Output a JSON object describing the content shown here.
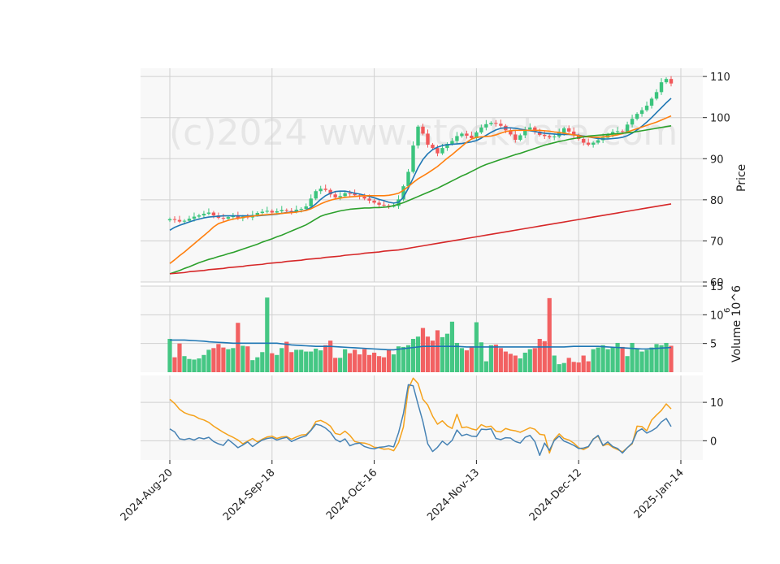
{
  "watermark": "(c)2024 www.stockdata.com",
  "chart_data": {
    "type": "candlestick",
    "x_tick_labels": [
      "2024-Aug-20",
      "2024-Sep-18",
      "2024-Oct-16",
      "2024-Nov-13",
      "2024-Dec-12",
      "2025-Jan-14"
    ],
    "price_panel": {
      "ylabel": "Price",
      "ylim": [
        60,
        112
      ],
      "yticks": [
        60,
        70,
        80,
        90,
        100,
        110
      ],
      "close": [
        75.3,
        75.1,
        74.7,
        74.9,
        75.4,
        75.9,
        76.2,
        76.6,
        76.9,
        76.2,
        75.6,
        75.4,
        75.8,
        76.1,
        75.5,
        75.9,
        75.7,
        76.3,
        76.8,
        77.1,
        77.3,
        76.9,
        77.2,
        77.5,
        77.3,
        77.1,
        77.6,
        77.8,
        78.4,
        80.3,
        82.1,
        82.7,
        82.4,
        81.3,
        80.6,
        80.9,
        81.6,
        81.5,
        81.1,
        80.8,
        80.3,
        79.8,
        79.3,
        78.8,
        78.6,
        78.5,
        78.5,
        80.1,
        83.3,
        86.8,
        93.2,
        97.8,
        96.1,
        93.4,
        92.6,
        91.3,
        92.6,
        93.6,
        94.3,
        95.5,
        96.1,
        95.6,
        95.0,
        96.4,
        97.6,
        98.4,
        98.7,
        98.5,
        98.0,
        96.9,
        95.9,
        94.6,
        95.7,
        97.1,
        97.6,
        96.6,
        95.8,
        95.5,
        95.2,
        95.4,
        96.3,
        97.4,
        96.6,
        95.7,
        94.8,
        93.9,
        93.4,
        93.9,
        94.5,
        95.1,
        95.9,
        96.5,
        96.7,
        96.6,
        98.3,
        99.7,
        100.9,
        101.8,
        102.9,
        104.6,
        106.2,
        108.6,
        109.4,
        108.3
      ],
      "moving_averages": [
        {
          "color": "#1f77b4",
          "values": [
            72.6,
            73.3,
            73.8,
            74.2,
            74.6,
            75.0,
            75.3,
            75.6,
            75.8,
            75.9,
            76.0,
            76.1,
            76.1,
            76.1,
            76.1,
            76.1,
            76.1,
            76.1,
            76.1,
            76.2,
            76.3,
            76.4,
            76.5,
            76.7,
            76.9,
            77.0,
            77.1,
            77.2,
            77.5,
            78.1,
            79.0,
            80.1,
            81.0,
            81.6,
            82.0,
            82.1,
            82.1,
            81.9,
            81.6,
            81.4,
            81.1,
            80.8,
            80.5,
            80.1,
            79.8,
            79.4,
            79.2,
            79.4,
            80.6,
            82.8,
            85.3,
            87.8,
            89.8,
            91.2,
            92.2,
            92.8,
            93.2,
            93.4,
            93.5,
            93.6,
            93.7,
            93.9,
            94.1,
            94.4,
            95.0,
            95.7,
            96.4,
            97.0,
            97.4,
            97.5,
            97.5,
            97.4,
            97.2,
            97.0,
            96.8,
            96.6,
            96.4,
            96.2,
            96.1,
            96.0,
            95.9,
            95.9,
            95.9,
            95.8,
            95.7,
            95.5,
            95.3,
            95.1,
            94.9,
            94.8,
            94.8,
            94.9,
            95.0,
            95.2,
            95.6,
            96.2,
            97.0,
            97.9,
            98.9,
            100.0,
            101.2,
            102.4,
            103.6,
            104.7
          ]
        },
        {
          "color": "#ff7f0e",
          "values": [
            64.5,
            65.4,
            66.4,
            67.3,
            68.3,
            69.3,
            70.3,
            71.3,
            72.3,
            73.4,
            74.2,
            74.6,
            75.0,
            75.3,
            75.5,
            75.7,
            75.9,
            76.0,
            76.2,
            76.3,
            76.4,
            76.5,
            76.6,
            76.7,
            76.8,
            76.9,
            77.0,
            77.2,
            77.4,
            77.8,
            78.4,
            79.0,
            79.5,
            79.9,
            80.2,
            80.4,
            80.6,
            80.7,
            80.8,
            80.9,
            81.0,
            81.0,
            81.0,
            81.0,
            81.0,
            81.1,
            81.3,
            81.6,
            82.3,
            83.2,
            84.2,
            85.1,
            85.8,
            86.5,
            87.3,
            88.1,
            89.1,
            90.1,
            91.0,
            92.0,
            93.0,
            94.0,
            94.8,
            95.2,
            95.3,
            95.4,
            95.5,
            95.8,
            96.2,
            96.6,
            96.8,
            96.9,
            96.9,
            96.9,
            96.9,
            96.9,
            96.9,
            96.8,
            96.7,
            96.5,
            96.4,
            96.2,
            96.0,
            95.8,
            95.6,
            95.4,
            95.3,
            95.2,
            95.2,
            95.3,
            95.4,
            95.6,
            95.8,
            96.1,
            96.5,
            96.9,
            97.3,
            97.7,
            98.1,
            98.5,
            98.9,
            99.4,
            99.9,
            100.4
          ]
        },
        {
          "color": "#2ca02c",
          "values": [
            62.0,
            62.4,
            62.8,
            63.3,
            63.7,
            64.2,
            64.7,
            65.1,
            65.5,
            65.8,
            66.2,
            66.5,
            66.9,
            67.2,
            67.6,
            68.0,
            68.4,
            68.8,
            69.2,
            69.7,
            70.1,
            70.5,
            71.0,
            71.4,
            71.9,
            72.4,
            72.9,
            73.4,
            73.9,
            74.6,
            75.3,
            76.0,
            76.4,
            76.7,
            77.0,
            77.3,
            77.5,
            77.7,
            77.8,
            77.9,
            78.0,
            78.0,
            78.1,
            78.1,
            78.2,
            78.3,
            78.6,
            78.9,
            79.3,
            79.8,
            80.3,
            80.8,
            81.3,
            81.8,
            82.3,
            82.8,
            83.4,
            84.0,
            84.6,
            85.2,
            85.8,
            86.3,
            86.9,
            87.5,
            88.1,
            88.6,
            89.0,
            89.4,
            89.8,
            90.2,
            90.6,
            91.0,
            91.3,
            91.7,
            92.1,
            92.5,
            92.9,
            93.3,
            93.6,
            93.9,
            94.2,
            94.4,
            94.7,
            94.9,
            95.1,
            95.3,
            95.5,
            95.6,
            95.7,
            95.8,
            95.9,
            96.0,
            96.1,
            96.2,
            96.3,
            96.4,
            96.6,
            96.8,
            97.0,
            97.2,
            97.4,
            97.6,
            97.8,
            98.0
          ]
        },
        {
          "color": "#d62728",
          "values": [
            62.0,
            62.1,
            62.2,
            62.3,
            62.5,
            62.6,
            62.7,
            62.8,
            63.0,
            63.1,
            63.2,
            63.3,
            63.5,
            63.6,
            63.7,
            63.8,
            64.0,
            64.1,
            64.2,
            64.3,
            64.5,
            64.6,
            64.7,
            64.8,
            65.0,
            65.1,
            65.2,
            65.3,
            65.5,
            65.6,
            65.7,
            65.8,
            66.0,
            66.1,
            66.2,
            66.3,
            66.5,
            66.6,
            66.7,
            66.8,
            67.0,
            67.1,
            67.2,
            67.3,
            67.5,
            67.6,
            67.7,
            67.8,
            68.0,
            68.2,
            68.4,
            68.6,
            68.8,
            69.0,
            69.2,
            69.4,
            69.6,
            69.8,
            70.0,
            70.2,
            70.4,
            70.6,
            70.8,
            71.0,
            71.2,
            71.4,
            71.6,
            71.8,
            72.0,
            72.2,
            72.4,
            72.6,
            72.8,
            73.0,
            73.2,
            73.4,
            73.6,
            73.8,
            74.0,
            74.2,
            74.4,
            74.6,
            74.8,
            75.0,
            75.2,
            75.4,
            75.6,
            75.8,
            76.0,
            76.2,
            76.4,
            76.6,
            76.8,
            77.0,
            77.2,
            77.4,
            77.6,
            77.8,
            78.0,
            78.2,
            78.4,
            78.6,
            78.8,
            79.0
          ]
        }
      ]
    },
    "volume_panel": {
      "ylabel": "Volume  10^6",
      "ylim": [
        0,
        15
      ],
      "yticks": [
        5,
        10,
        15
      ],
      "values": [
        5.8,
        2.6,
        5.0,
        2.8,
        2.3,
        2.2,
        2.4,
        3.0,
        3.9,
        4.2,
        4.9,
        4.3,
        4.0,
        4.2,
        8.6,
        4.6,
        4.5,
        2.1,
        2.6,
        3.5,
        13.0,
        3.3,
        3.0,
        4.2,
        5.3,
        3.5,
        3.9,
        3.9,
        3.6,
        3.6,
        4.1,
        3.8,
        4.7,
        5.5,
        2.5,
        2.5,
        4.0,
        3.3,
        3.9,
        3.1,
        4.0,
        3.0,
        3.4,
        2.8,
        2.6,
        4.0,
        3.1,
        4.5,
        4.4,
        4.7,
        5.8,
        6.2,
        7.7,
        6.2,
        5.5,
        7.3,
        6.1,
        6.7,
        8.8,
        5.1,
        4.2,
        3.8,
        4.5,
        8.7,
        5.2,
        1.9,
        4.7,
        4.8,
        4.2,
        3.6,
        3.2,
        2.9,
        2.4,
        3.4,
        4.0,
        4.2,
        5.8,
        5.4,
        12.9,
        2.9,
        1.4,
        1.6,
        2.5,
        1.8,
        1.7,
        2.9,
        1.9,
        4.0,
        4.3,
        4.7,
        4.0,
        4.4,
        5.1,
        4.4,
        2.8,
        5.1,
        4.1,
        3.6,
        3.9,
        4.3,
        4.9,
        4.7,
        5.1,
        4.6
      ],
      "average": [
        5.6,
        5.6,
        5.6,
        5.6,
        5.55,
        5.5,
        5.45,
        5.4,
        5.3,
        5.25,
        5.2,
        5.15,
        5.1,
        5.05,
        5.05,
        5.05,
        5.05,
        5.05,
        5.05,
        5.05,
        5.05,
        5.05,
        5.05,
        4.95,
        4.85,
        4.75,
        4.7,
        4.65,
        4.6,
        4.55,
        4.5,
        4.5,
        4.5,
        4.5,
        4.45,
        4.4,
        4.35,
        4.3,
        4.25,
        4.2,
        4.15,
        4.1,
        4.05,
        4.0,
        3.95,
        3.9,
        3.9,
        4.0,
        4.1,
        4.2,
        4.3,
        4.4,
        4.5,
        4.5,
        4.5,
        4.5,
        4.5,
        4.5,
        4.5,
        4.5,
        4.45,
        4.4,
        4.4,
        4.4,
        4.4,
        4.4,
        4.4,
        4.4,
        4.4,
        4.4,
        4.4,
        4.4,
        4.4,
        4.4,
        4.4,
        4.4,
        4.4,
        4.4,
        4.4,
        4.4,
        4.4,
        4.4,
        4.45,
        4.5,
        4.5,
        4.5,
        4.5,
        4.5,
        4.5,
        4.45,
        4.4,
        4.35,
        4.3,
        4.25,
        4.2,
        4.15,
        4.1,
        4.05,
        4.05,
        4.1,
        4.15,
        4.2,
        4.25,
        4.3
      ]
    },
    "indicator_panel": {
      "ylim": [
        -5,
        17
      ],
      "yticks": [
        0,
        10
      ],
      "series": [
        {
          "color": "#f5a21b",
          "values": [
            10.8,
            9.7,
            8.2,
            7.3,
            6.8,
            6.5,
            5.8,
            5.4,
            4.8,
            3.8,
            3.0,
            2.2,
            1.5,
            0.9,
            0.2,
            -0.8,
            -0.1,
            0.6,
            -0.3,
            0.4,
            1.0,
            1.2,
            0.6,
            1.0,
            1.1,
            0.4,
            1.0,
            1.5,
            1.6,
            2.8,
            5.0,
            5.3,
            4.7,
            3.8,
            1.9,
            1.6,
            2.5,
            1.4,
            -0.2,
            -0.5,
            -0.6,
            -1.0,
            -1.7,
            -1.8,
            -2.2,
            -2.1,
            -2.6,
            -0.5,
            3.6,
            13.5,
            16.3,
            14.9,
            10.8,
            9.3,
            6.4,
            4.3,
            5.2,
            3.9,
            3.2,
            6.9,
            3.4,
            3.6,
            3.1,
            2.8,
            4.2,
            3.6,
            3.8,
            2.5,
            2.3,
            3.2,
            2.8,
            2.6,
            2.2,
            2.8,
            3.4,
            3.0,
            1.7,
            1.5,
            -3.2,
            0.4,
            1.8,
            0.6,
            0.2,
            -0.6,
            -1.8,
            -2.3,
            -1.6,
            0.5,
            1.2,
            -1.3,
            -0.8,
            -1.7,
            -2.3,
            -2.9,
            -1.8,
            -0.8,
            3.8,
            3.7,
            2.6,
            5.4,
            6.7,
            7.9,
            9.6,
            8.3
          ]
        },
        {
          "color": "#4682b4",
          "values": [
            3.1,
            2.3,
            0.5,
            0.3,
            0.6,
            0.2,
            0.8,
            0.5,
            0.9,
            -0.2,
            -0.8,
            -1.2,
            0.3,
            -0.7,
            -1.8,
            -1.1,
            -0.3,
            -1.5,
            -0.6,
            0.2,
            0.6,
            0.8,
            0.2,
            0.6,
            0.9,
            -0.2,
            0.4,
            0.9,
            1.3,
            2.7,
            4.3,
            4.0,
            3.3,
            2.2,
            0.4,
            -0.3,
            0.5,
            -1.3,
            -0.8,
            -0.6,
            -1.5,
            -1.9,
            -2.1,
            -1.7,
            -1.6,
            -1.3,
            -1.6,
            2.1,
            7.1,
            14.6,
            14.3,
            9.5,
            5.0,
            -0.8,
            -2.8,
            -1.7,
            -0.1,
            -1.1,
            0.1,
            2.8,
            1.3,
            1.7,
            1.2,
            1.1,
            3.0,
            2.9,
            3.1,
            0.6,
            0.3,
            0.8,
            0.7,
            -0.2,
            -0.6,
            0.9,
            1.4,
            -0.2,
            -3.8,
            -0.6,
            -2.5,
            0.1,
            1.2,
            -0.1,
            -0.6,
            -1.2,
            -2.0,
            -1.9,
            -1.5,
            0.4,
            1.4,
            -1.2,
            -0.3,
            -1.5,
            -2.0,
            -3.2,
            -1.8,
            -0.6,
            2.4,
            3.1,
            2.0,
            2.6,
            3.4,
            4.9,
            5.8,
            3.7
          ]
        }
      ]
    }
  }
}
